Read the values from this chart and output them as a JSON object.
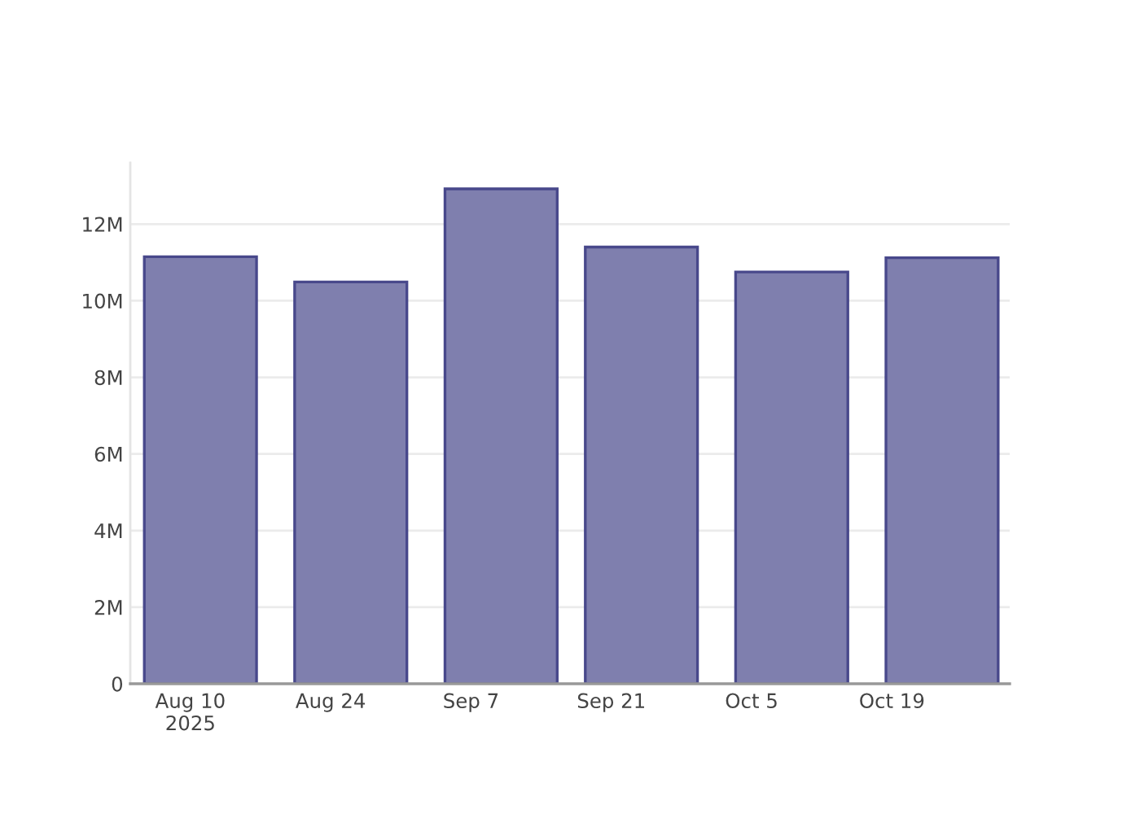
{
  "chart_data": {
    "type": "bar",
    "x": [
      "2025-08-11",
      "2025-08-26",
      "2025-09-10",
      "2025-09-24",
      "2025-10-09",
      "2025-10-24"
    ],
    "values": [
      11150000,
      10490000,
      12920000,
      11400000,
      10750000,
      11120000
    ],
    "color": "#7f7fae",
    "xlim": [
      "2025-08-04",
      "2025-10-30T18:00"
    ],
    "xticks": [
      {
        "value": "2025-08-10",
        "label": "Aug 10\n2025"
      },
      {
        "value": "2025-08-24",
        "label": "Aug 24"
      },
      {
        "value": "2025-09-07",
        "label": "Sep 7"
      },
      {
        "value": "2025-09-21",
        "label": "Sep 21"
      },
      {
        "value": "2025-10-05",
        "label": "Oct 5"
      },
      {
        "value": "2025-10-19",
        "label": "Oct 19"
      }
    ],
    "ylim": [
      0,
      13600000
    ],
    "yticks": [
      0,
      {
        "value": 2000000,
        "label": "2M"
      },
      {
        "value": 4000000,
        "label": "4M"
      },
      {
        "value": 6000000,
        "label": "6M"
      },
      {
        "value": 8000000,
        "label": "8M"
      },
      {
        "value": 10000000,
        "label": "10M"
      },
      {
        "value": 12000000,
        "label": "12M"
      }
    ],
    "grid": "y"
  }
}
